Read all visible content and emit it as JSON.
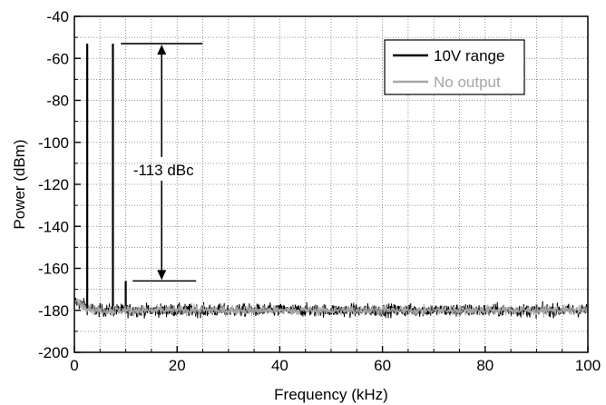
{
  "chart_data": {
    "type": "line",
    "xlabel": "Frequency (kHz)",
    "ylabel": "Power (dBm)",
    "xlim": [
      0,
      100
    ],
    "ylim": [
      -200,
      -40
    ],
    "x_ticks": [
      0,
      20,
      40,
      60,
      80,
      100
    ],
    "y_ticks": [
      -200,
      -180,
      -160,
      -140,
      -120,
      -100,
      -80,
      -60,
      -40
    ],
    "x_minor_step": 5,
    "y_minor_step": 10,
    "grid": true,
    "legend_position": "top-right",
    "series": [
      {
        "name": "10V range",
        "color": "#000000",
        "noise_floor_dbm": -180,
        "spurs": [
          {
            "x": 2.5,
            "y": -53
          },
          {
            "x": 7.5,
            "y": -53
          },
          {
            "x": 10,
            "y": -166
          }
        ]
      },
      {
        "name": "No output",
        "color": "#a6a6a6",
        "noise_floor_dbm": -180
      }
    ],
    "annotations": [
      {
        "text": "-113 dBc",
        "x": 17,
        "y": -113,
        "arrow_from_y": -53,
        "arrow_to_y": -166
      }
    ]
  }
}
